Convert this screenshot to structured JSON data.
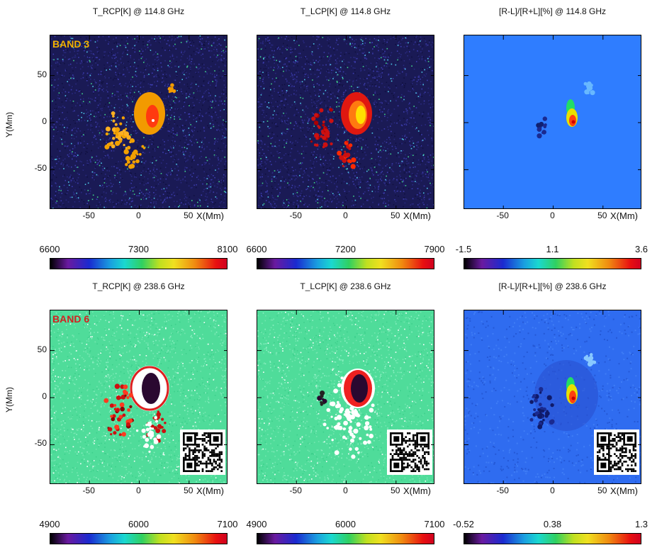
{
  "rows": [
    {
      "band_label": "BAND 3",
      "band_color": "#f2b100",
      "panels": [
        {
          "title": "T_RCP[K] @ 114.8 GHz",
          "colorbar_ticks": [
            "6600",
            "7300",
            "8100"
          ],
          "scheme": "rcp3"
        },
        {
          "title": "T_LCP[K] @ 114.8 GHz",
          "colorbar_ticks": [
            "6600",
            "7200",
            "7900"
          ],
          "scheme": "lcp3"
        },
        {
          "title": "[R-L]/[R+L][%] @ 114.8 GHz",
          "colorbar_ticks": [
            "-1.5",
            "1.1",
            "3.6"
          ],
          "scheme": "pol3"
        }
      ]
    },
    {
      "band_label": "BAND 6",
      "band_color": "#d32020",
      "panels": [
        {
          "title": "T_RCP[K] @ 238.6 GHz",
          "colorbar_ticks": [
            "4900",
            "6000",
            "7100"
          ],
          "scheme": "rcp6"
        },
        {
          "title": "T_LCP[K] @ 238.6 GHz",
          "colorbar_ticks": [
            "4900",
            "6000",
            "7100"
          ],
          "scheme": "lcp6"
        },
        {
          "title": "[R-L]/[R+L][%] @ 238.6 GHz",
          "colorbar_ticks": [
            "-0.52",
            "0.38",
            "1.3"
          ],
          "scheme": "pol6"
        }
      ]
    }
  ],
  "axes": {
    "xlabel": "X(Mm)",
    "ylabel": "Y(Mm)",
    "x_ticks": [
      "-50",
      "0",
      "50"
    ],
    "y_ticks": [
      "50",
      "0",
      "-50"
    ]
  }
}
